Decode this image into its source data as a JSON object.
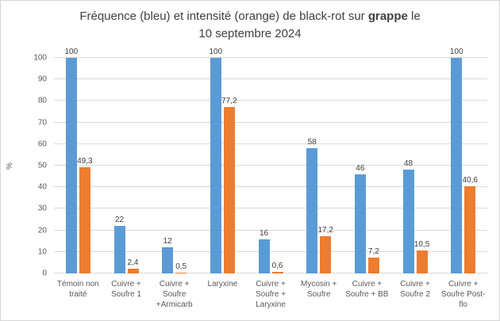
{
  "title": {
    "prefix": "Fréquence (bleu) et intensité (orange) de black-rot sur ",
    "bold": "grappe",
    "suffix": " le",
    "line2": "10 septembre 2024"
  },
  "y_axis": {
    "label": "%",
    "ticks": [
      "0",
      "10",
      "20",
      "30",
      "40",
      "50",
      "60",
      "70",
      "80",
      "90",
      "100"
    ],
    "min": 0,
    "max": 100,
    "step": 10
  },
  "colors": {
    "frequency_blue": "#5B9BD5",
    "intensity_orange": "#ED7D31",
    "gridline": "#D9D9D9",
    "axis_text": "#595959",
    "data_label_text": "#404040",
    "title_text": "#404040",
    "border": "#D6D6D6",
    "background": "#FFFFFF"
  },
  "chart_data": {
    "type": "bar",
    "title": "Fréquence (bleu) et intensité (orange) de black-rot sur grappe le 10 septembre 2024",
    "xlabel": "",
    "ylabel": "%",
    "ylim": [
      0,
      100
    ],
    "grid": true,
    "legend_position": "none",
    "categories": [
      "Témoin non traité",
      "Cuivre + Soufre 1",
      "Cuivre + Soufre +Armicarb",
      "Laryxine",
      "Cuivre + Soufre + Laryxine",
      "Mycosin + Soufre",
      "Cuivre + Soufre + BB",
      "Cuivre + Soufre 2",
      "Cuivre + Soufre Post-flo"
    ],
    "series": [
      {
        "name": "Fréquence (bleu)",
        "color": "#5B9BD5",
        "values": [
          100,
          22,
          12,
          100,
          16,
          58,
          46,
          48,
          100
        ],
        "labels": [
          "100",
          "22",
          "12",
          "100",
          "16",
          "58",
          "46",
          "48",
          "100"
        ]
      },
      {
        "name": "Intensité (orange)",
        "color": "#ED7D31",
        "values": [
          49.3,
          2.4,
          0.5,
          77.2,
          0.6,
          17.2,
          7.2,
          10.5,
          40.6
        ],
        "labels": [
          "49,3",
          "2,4",
          "0,5",
          "77,2",
          "0,6",
          "17,2",
          "7,2",
          "10,5",
          "40,6"
        ]
      }
    ]
  }
}
